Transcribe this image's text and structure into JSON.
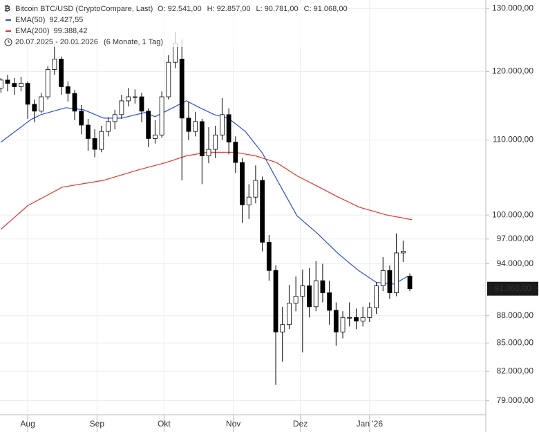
{
  "chart_data": {
    "type": "candlestick",
    "title": "Bitcoin BTC/USD (CryptoCompare, Last)",
    "ohlc_header": [
      {
        "label": "O:",
        "value": "92.541,00"
      },
      {
        "label": "H:",
        "value": "92.857,00"
      },
      {
        "label": "L:",
        "value": "90.781,00"
      },
      {
        "label": "C:",
        "value": "91.068,00"
      }
    ],
    "date_range": "20.07.2025 - 20.01.2026",
    "period": "(6 Monate, 1 Tag)",
    "log_scale": true,
    "grid": true,
    "xlim": [
      -0.4,
      217
    ],
    "xticks": [
      {
        "value": 12,
        "label": "Aug"
      },
      {
        "value": 43,
        "label": "Sep"
      },
      {
        "value": 73,
        "label": "Okt"
      },
      {
        "value": 104,
        "label": "Nov"
      },
      {
        "value": 134,
        "label": "Dez"
      },
      {
        "value": 165,
        "label": "Jan '26"
      }
    ],
    "ylim": [
      77600,
      131400
    ],
    "yticks": [
      {
        "value": 130000,
        "label": "130.000,00"
      },
      {
        "value": 120000,
        "label": "120.000,00"
      },
      {
        "value": 110000,
        "label": "110.000,00"
      },
      {
        "value": 100000,
        "label": "100.000,00"
      },
      {
        "value": 97000,
        "label": "97.000,00"
      },
      {
        "value": 94000,
        "label": "94.000,00"
      },
      {
        "value": 88000,
        "label": "88.000,00"
      },
      {
        "value": 85000,
        "label": "85.000,00"
      },
      {
        "value": 82000,
        "label": "82.000,00"
      },
      {
        "value": 79000,
        "label": "79.000,00"
      }
    ],
    "last_price": {
      "value": 91068,
      "label": "91.068,00"
    },
    "candles": {
      "up_color": "#ffffff",
      "down_color": "#000000",
      "x": [
        0,
        3,
        6,
        9,
        12,
        15,
        18,
        21,
        24,
        27,
        30,
        33,
        36,
        39,
        42,
        45,
        48,
        51,
        54,
        57,
        60,
        63,
        66,
        69,
        72,
        75,
        78,
        81,
        84,
        87,
        90,
        93,
        96,
        99,
        102,
        105,
        108,
        111,
        114,
        117,
        120,
        123,
        126,
        129,
        132,
        135,
        138,
        141,
        144,
        147,
        150,
        153,
        156,
        159,
        162,
        165,
        168,
        171,
        174,
        177,
        180,
        183
      ],
      "open": [
        117500,
        118700,
        118200,
        117700,
        118200,
        115100,
        114100,
        116200,
        120300,
        121900,
        117700,
        116700,
        114100,
        112100,
        110200,
        108700,
        111200,
        112600,
        113600,
        115600,
        116200,
        116200,
        114100,
        110200,
        110700,
        116200,
        121400,
        121900,
        113100,
        111200,
        112600,
        107800,
        108700,
        110700,
        113600,
        109700,
        106900,
        101300,
        102300,
        104500,
        96600,
        93200,
        86200,
        87000,
        89400,
        90200,
        91400,
        89000,
        92000,
        90600,
        88600,
        86200,
        87800,
        87800,
        87400,
        87800,
        88900,
        91400,
        93200,
        90600,
        95300,
        92541
      ],
      "high": [
        119000,
        119500,
        119000,
        119200,
        118500,
        115800,
        116800,
        120800,
        124300,
        122300,
        118500,
        117200,
        115000,
        113000,
        111500,
        112000,
        113200,
        114300,
        116500,
        117500,
        117300,
        116800,
        114500,
        112800,
        117000,
        122500,
        126200,
        125000,
        115500,
        114000,
        113000,
        111800,
        112000,
        116000,
        114500,
        110500,
        107500,
        104000,
        106500,
        105000,
        97500,
        93800,
        89000,
        91500,
        92500,
        93300,
        93500,
        94300,
        94000,
        92000,
        89500,
        88500,
        89500,
        88800,
        89000,
        89500,
        91800,
        94800,
        93800,
        97700,
        96800,
        92857
      ],
      "low": [
        116800,
        117000,
        116500,
        117000,
        113000,
        112500,
        113800,
        115800,
        119500,
        116500,
        115500,
        112800,
        110800,
        108500,
        107600,
        108300,
        110500,
        111500,
        113000,
        114800,
        115200,
        112500,
        109000,
        109500,
        110300,
        115800,
        120500,
        104500,
        110000,
        110500,
        104000,
        106800,
        107500,
        110000,
        108000,
        105500,
        99000,
        99500,
        101500,
        95500,
        92000,
        80600,
        83000,
        86500,
        88500,
        84000,
        87800,
        88500,
        89500,
        87000,
        84700,
        85500,
        86800,
        86500,
        86800,
        87300,
        88200,
        90800,
        89900,
        90200,
        94200,
        90781
      ],
      "close": [
        118700,
        118200,
        117700,
        118200,
        115100,
        114100,
        116200,
        120300,
        121900,
        117700,
        116700,
        114100,
        112100,
        110200,
        108700,
        111200,
        112600,
        113600,
        115600,
        116200,
        116200,
        114100,
        110200,
        110700,
        116200,
        121400,
        124400,
        113100,
        111200,
        112600,
        107800,
        108700,
        110700,
        113600,
        109700,
        106900,
        101300,
        102300,
        104500,
        96600,
        93200,
        86200,
        87000,
        89400,
        90200,
        91400,
        89000,
        92000,
        90600,
        88600,
        86200,
        87800,
        87800,
        87400,
        87800,
        88900,
        91400,
        93200,
        90600,
        95300,
        95500,
        91068
      ]
    },
    "series": [
      {
        "name": "EMA(50)",
        "color": "#2b4ae0",
        "last_value": 92427.55,
        "last_value_label": "92.427,55",
        "x": [
          0,
          13.5,
          18,
          29,
          37,
          46,
          54,
          64.5,
          69,
          77,
          83,
          89,
          95.5,
          101.7,
          109.4,
          117,
          125,
          132.5,
          142,
          151,
          160,
          168,
          176,
          182,
          184
        ],
        "values": [
          109700,
          112900,
          113600,
          114600,
          114300,
          113100,
          113100,
          113900,
          113300,
          114600,
          115600,
          114600,
          113600,
          113100,
          111200,
          108200,
          103800,
          99900,
          97600,
          95200,
          93200,
          91800,
          91600,
          92500,
          92400
        ]
      },
      {
        "name": "EMA(200)",
        "color": "#e8312a",
        "last_value": 99388.42,
        "last_value_label": "99.388,42",
        "x": [
          0,
          12,
          27.5,
          46,
          61.5,
          74,
          83,
          92.4,
          104.7,
          114,
          123.3,
          132.5,
          141.8,
          151,
          160.4,
          172.7,
          184
        ],
        "values": [
          98200,
          101200,
          103600,
          104500,
          105900,
          106900,
          107800,
          108300,
          108300,
          107800,
          106900,
          105100,
          103700,
          102300,
          101000,
          100000,
          99400
        ]
      }
    ]
  }
}
